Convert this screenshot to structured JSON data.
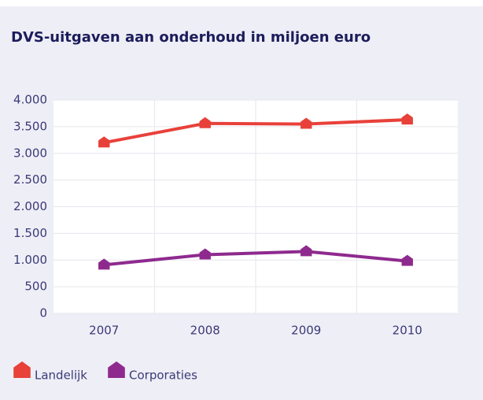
{
  "chart_data": {
    "type": "line",
    "title": "DVS-uitgaven aan onderhoud in miljoen euro",
    "categories": [
      "2007",
      "2008",
      "2009",
      "2010"
    ],
    "series": [
      {
        "name": "Landelijk",
        "color": "#e8413a",
        "values": [
          3200,
          3560,
          3550,
          3630
        ]
      },
      {
        "name": "Corporaties",
        "color": "#8e2a8e",
        "values": [
          910,
          1100,
          1160,
          980
        ]
      }
    ],
    "ylim": [
      0,
      4000
    ],
    "yticks": [
      0,
      500,
      {
        "value": 1000,
        "label": "1.000"
      },
      {
        "value": 1500,
        "label": "1.500"
      },
      {
        "value": 2000,
        "label": "2.000"
      },
      {
        "value": 2500,
        "label": "2.500"
      },
      {
        "value": 3000,
        "label": "3.000"
      },
      {
        "value": 3500,
        "label": "3.500"
      },
      {
        "value": 4000,
        "label": "4.000"
      }
    ],
    "grid": true
  }
}
